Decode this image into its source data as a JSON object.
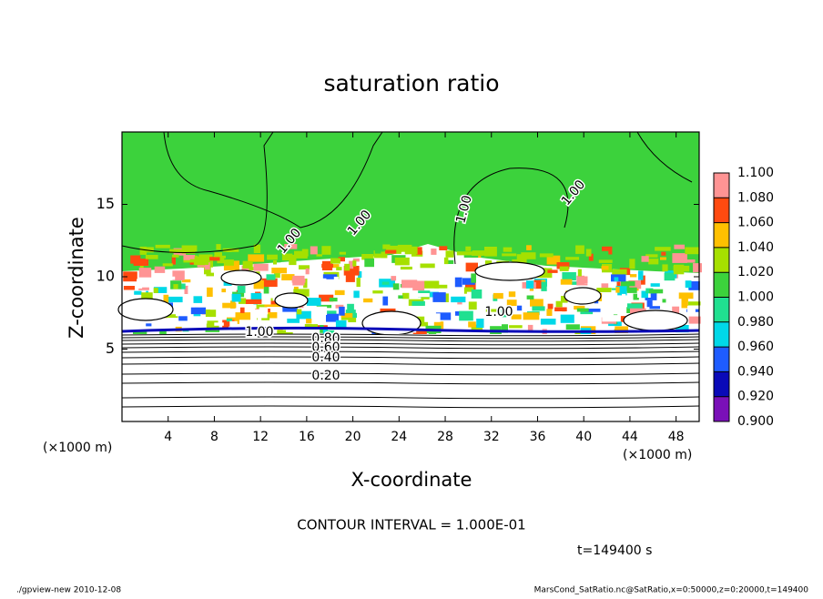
{
  "chart_data": {
    "type": "contour",
    "title": "saturation ratio",
    "x_label": "X-coordinate",
    "y_label": "Z-coordinate",
    "x_unit": "(×1000 m)",
    "y_unit": "(×1000 m)",
    "xlim": [
      0,
      50
    ],
    "xticks": [
      4,
      8,
      12,
      16,
      20,
      24,
      28,
      32,
      36,
      40,
      44,
      48
    ],
    "ylim": [
      0,
      20
    ],
    "yticks": [
      5,
      10,
      15
    ],
    "contour_labels": [
      "1.00",
      "1.00",
      "1.00",
      "1.00",
      "1.00",
      "1.00",
      "0.80",
      "0.60",
      "0.40",
      "0.20"
    ],
    "colorbar": {
      "ticks": [
        {
          "value": 0.9,
          "label": "0.900"
        },
        {
          "value": 0.92,
          "label": "0.920"
        },
        {
          "value": 0.94,
          "label": "0.940"
        },
        {
          "value": 0.96,
          "label": "0.960"
        },
        {
          "value": 0.98,
          "label": "0.980"
        },
        {
          "value": 1.0,
          "label": "1.000"
        },
        {
          "value": 1.02,
          "label": "1.020"
        },
        {
          "value": 1.04,
          "label": "1.040"
        },
        {
          "value": 1.06,
          "label": "1.060"
        },
        {
          "value": 1.08,
          "label": "1.080"
        },
        {
          "value": 1.1,
          "label": "1.100"
        }
      ],
      "colors": [
        "#7a10b8",
        "#0a0ab8",
        "#1e5cff",
        "#00d8e8",
        "#20e090",
        "#3cd23c",
        "#a6e000",
        "#ffc000",
        "#ff4a10",
        "#ff9494"
      ]
    },
    "annotations": {
      "contour_interval": "CONTOUR INTERVAL = 1.000E-01",
      "time": "t=149400 s",
      "program": "./gpview-new   2010-12-08",
      "source": "MarsCond_SatRatio.nc@SatRatio,x=0:50000,z=0:20000,t=149400"
    }
  }
}
